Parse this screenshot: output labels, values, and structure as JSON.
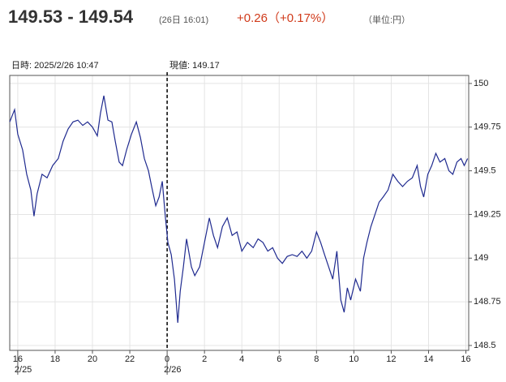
{
  "chart_data": {
    "type": "line",
    "title": "149.53 - 149.54",
    "subtitle": "(26日 16:01)",
    "change": "+0.26（+0.17%）",
    "unit": "（単位:円）",
    "cursor_time": "日時: 2025/2/26  10:47",
    "cursor_value": "現値: 149.17",
    "color": "#1f2a8f",
    "grid": true,
    "xlim": [
      15.57,
      40.15
    ],
    "ylim": [
      148.472,
      150.046
    ],
    "xticks": [
      16,
      18,
      20,
      22,
      {
        "value": 24,
        "label": "0"
      },
      {
        "value": 26,
        "label": "2"
      },
      {
        "value": 28,
        "label": "4"
      },
      {
        "value": 30,
        "label": "6"
      },
      {
        "value": 32,
        "label": "8"
      },
      {
        "value": 34,
        "label": "10"
      },
      {
        "value": 36,
        "label": "12"
      },
      {
        "value": 38,
        "label": "14"
      },
      {
        "value": 40,
        "label": "16"
      }
    ],
    "date_labels": [
      {
        "value": 16,
        "label": "2/25"
      },
      {
        "value": 24,
        "label": "2/26"
      }
    ],
    "yticks": [
      150,
      149.75,
      149.5,
      149.25,
      149,
      148.75,
      148.5
    ],
    "x": [
      15.57,
      15.83,
      16,
      16.26,
      16.48,
      16.7,
      16.87,
      17.04,
      17.3,
      17.57,
      17.87,
      18.17,
      18.43,
      18.7,
      18.96,
      19.22,
      19.48,
      19.74,
      20,
      20.26,
      20.43,
      20.61,
      20.83,
      21.04,
      21.22,
      21.43,
      21.61,
      21.83,
      22.09,
      22.35,
      22.57,
      22.78,
      23,
      23.17,
      23.39,
      23.57,
      23.74,
      23.91,
      24.04,
      24.22,
      24.39,
      24.57,
      24.7,
      24.87,
      25.04,
      25.3,
      25.48,
      25.74,
      26,
      26.26,
      26.48,
      26.7,
      26.96,
      27.22,
      27.48,
      27.74,
      28,
      28.3,
      28.61,
      28.87,
      29.13,
      29.39,
      29.65,
      29.91,
      30.17,
      30.43,
      30.7,
      30.96,
      31.22,
      31.48,
      31.74,
      32,
      32.22,
      32.43,
      32.65,
      32.87,
      33.09,
      33.3,
      33.48,
      33.65,
      33.83,
      34.09,
      34.35,
      34.52,
      34.7,
      34.91,
      35.13,
      35.35,
      35.57,
      35.83,
      36.09,
      36.35,
      36.61,
      36.87,
      37.13,
      37.39,
      37.57,
      37.74,
      37.96,
      38.17,
      38.39,
      38.61,
      38.87,
      39.09,
      39.3,
      39.52,
      39.74,
      39.91,
      40.09
    ],
    "values": [
      149.78,
      149.85,
      149.71,
      149.62,
      149.48,
      149.39,
      149.24,
      149.37,
      149.48,
      149.46,
      149.53,
      149.57,
      149.67,
      149.74,
      149.78,
      149.79,
      149.76,
      149.78,
      149.75,
      149.7,
      149.83,
      149.93,
      149.79,
      149.78,
      149.67,
      149.55,
      149.53,
      149.62,
      149.71,
      149.78,
      149.69,
      149.57,
      149.5,
      149.41,
      149.3,
      149.35,
      149.44,
      149.23,
      149.09,
      149.02,
      148.88,
      148.63,
      148.81,
      148.95,
      149.11,
      148.95,
      148.9,
      148.95,
      149.09,
      149.23,
      149.13,
      149.06,
      149.18,
      149.23,
      149.13,
      149.15,
      149.04,
      149.09,
      149.06,
      149.11,
      149.09,
      149.04,
      149.06,
      149,
      148.97,
      149.01,
      149.02,
      149.01,
      149.04,
      149,
      149.04,
      149.15,
      149.09,
      149.02,
      148.95,
      148.88,
      149.04,
      148.76,
      148.69,
      148.83,
      148.76,
      148.88,
      148.81,
      149,
      149.09,
      149.18,
      149.25,
      149.32,
      149.35,
      149.39,
      149.48,
      149.44,
      149.41,
      149.44,
      149.46,
      149.53,
      149.41,
      149.35,
      149.48,
      149.53,
      149.6,
      149.55,
      149.57,
      149.5,
      149.48,
      149.55,
      149.57,
      149.53,
      149.57
    ]
  }
}
